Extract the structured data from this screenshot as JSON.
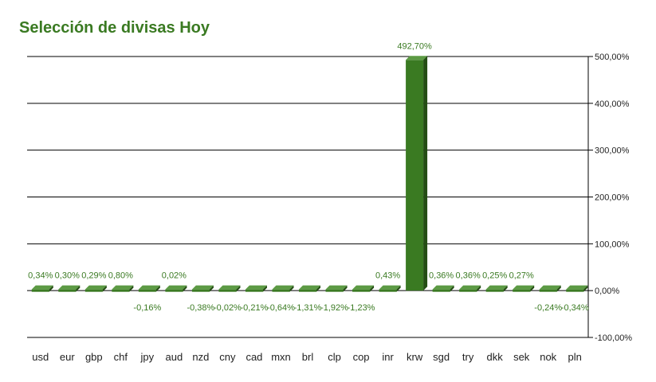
{
  "chart_data": {
    "type": "bar",
    "title": "Selección de divisas Hoy",
    "xlabel": "",
    "ylabel": "",
    "categories": [
      "usd",
      "eur",
      "gbp",
      "chf",
      "jpy",
      "aud",
      "nzd",
      "cny",
      "cad",
      "mxn",
      "brl",
      "clp",
      "cop",
      "inr",
      "krw",
      "sgd",
      "try",
      "dkk",
      "sek",
      "nok",
      "pln"
    ],
    "values": [
      0.34,
      0.3,
      0.29,
      0.8,
      -0.16,
      0.02,
      -0.38,
      -0.02,
      -0.21,
      -0.64,
      -1.31,
      -1.92,
      -1.23,
      0.43,
      492.7,
      0.36,
      0.36,
      0.25,
      0.27,
      -0.24,
      -0.34
    ],
    "value_labels": [
      "0,34%",
      "0,30%",
      "0,29%",
      "0,80%",
      "-0,16%",
      "0,02%",
      "-0,38%",
      "-0,02%",
      "-0,21%",
      "-0,64%",
      "-1,31%",
      "-1,92%",
      "-1,23%",
      "0,43%",
      "492,70%",
      "0,36%",
      "0,36%",
      "0,25%",
      "0,27%",
      "-0,24%",
      "-0,34%"
    ],
    "ylim": [
      -100,
      500
    ],
    "yticks": [
      -100,
      0,
      100,
      200,
      300,
      400,
      500
    ],
    "ytick_labels": [
      "-100,00%",
      "0,00%",
      "100,00%",
      "200,00%",
      "300,00%",
      "400,00%",
      "500,00%"
    ],
    "y_axis_position": "right",
    "grid": true,
    "legend": "none",
    "bar_color": "#3a7a22"
  }
}
